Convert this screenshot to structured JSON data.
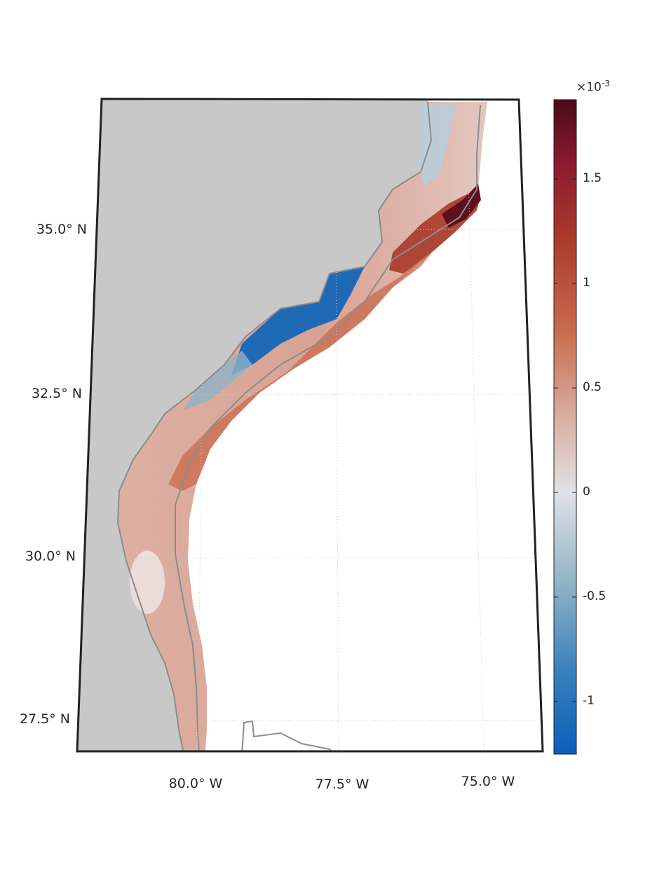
{
  "map": {
    "projection_lat_labels": [
      "35.0° N",
      "32.5° N",
      "30.0° N",
      "27.5° N"
    ],
    "lon_labels": [
      "80.0° W",
      "77.5° W",
      "75.0° W"
    ],
    "land_color": "#c8c8c8",
    "coast_color": "#8c8c8c",
    "grid": "on",
    "grid_style": "dotted"
  },
  "colorbar": {
    "exponent_prefix": "×10",
    "exponent_power": "-3",
    "tick_labels": [
      "1.5",
      "1",
      "0.5",
      "0",
      "-0.5",
      "-1"
    ],
    "tick_values": [
      1.5,
      1.0,
      0.5,
      0.0,
      -0.5,
      -1.0
    ],
    "range": [
      -1.25,
      1.9
    ],
    "colormap": [
      "#0a5fb8",
      "#3a82bd",
      "#8fb3c7",
      "#dfe2e6",
      "#dcb5a8",
      "#c96a4c",
      "#a93a2a",
      "#8e1a30",
      "#4b0a18"
    ]
  }
}
